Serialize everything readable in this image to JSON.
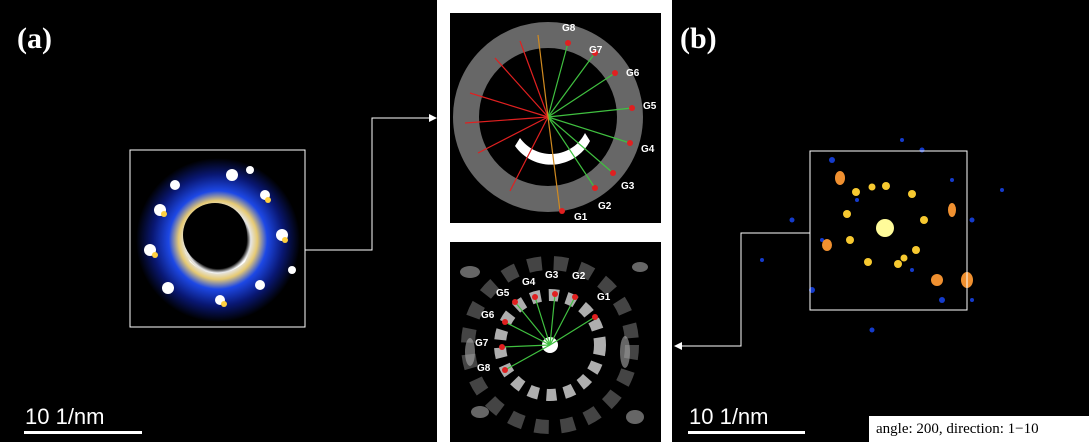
{
  "panel_a": {
    "label": "(a)",
    "scale_bar": "10 1/nm"
  },
  "panel_b": {
    "label": "(b)",
    "scale_bar": "10 1/nm",
    "caption": "angle: 200, direction: 1−10"
  },
  "inset_top": {
    "labels": [
      "G8",
      "G7",
      "G6",
      "G5",
      "G4",
      "G3",
      "G2",
      "G1"
    ]
  },
  "inset_bottom": {
    "labels": [
      "G4",
      "G3",
      "G2",
      "G1",
      "G5",
      "G6",
      "G7",
      "G8"
    ]
  },
  "colors": {
    "red_line": "#e02020",
    "green_line": "#40c040",
    "orange_line": "#d08a20",
    "frame": "#ffffff"
  }
}
